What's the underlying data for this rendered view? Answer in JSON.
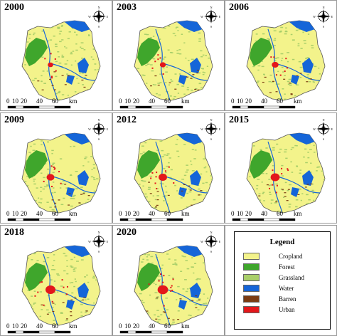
{
  "panels": [
    {
      "year": "2000"
    },
    {
      "year": "2003"
    },
    {
      "year": "2006"
    },
    {
      "year": "2009"
    },
    {
      "year": "2012"
    },
    {
      "year": "2015"
    },
    {
      "year": "2018"
    },
    {
      "year": "2020"
    }
  ],
  "scale_labels": [
    "0",
    "10",
    "20",
    "40",
    "60",
    "km"
  ],
  "legend": {
    "title": "Legend",
    "items": [
      {
        "label": "Cropland",
        "color": "#f3f38b"
      },
      {
        "label": "Forest",
        "color": "#3fa62c"
      },
      {
        "label": "Grassland",
        "color": "#a9cf6a"
      },
      {
        "label": "Water",
        "color": "#1565d8"
      },
      {
        "label": "Barren",
        "color": "#7a3b12"
      },
      {
        "label": "Urban",
        "color": "#e3171b"
      }
    ]
  },
  "urban_extent": [
    0.55,
    0.6,
    0.68,
    0.78,
    0.85,
    0.92,
    1.0,
    1.05
  ],
  "compass_letters": [
    "N",
    "E",
    "S",
    "W"
  ]
}
